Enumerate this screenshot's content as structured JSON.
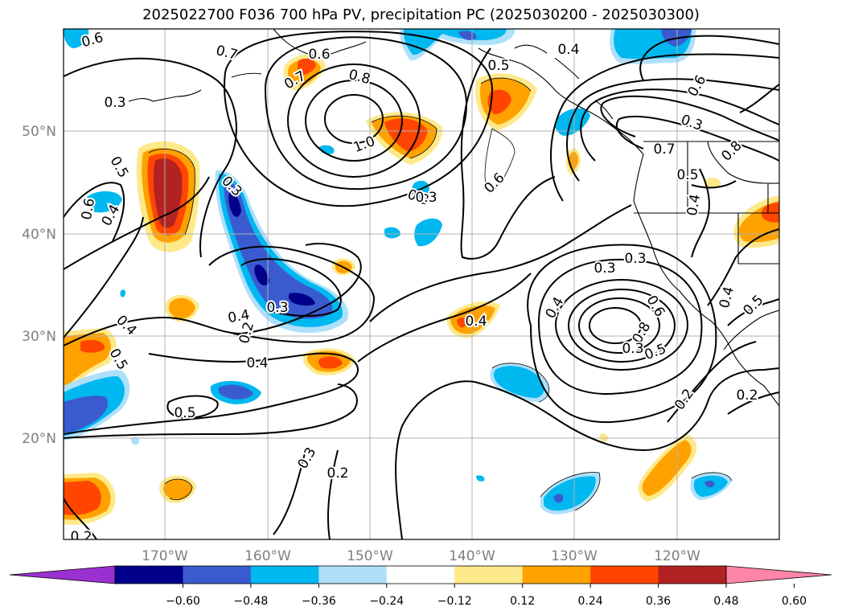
{
  "title": "2025022700 F036 700 hPa PV, precipitation PC (2025030200 - 2025030300)",
  "map": {
    "lat_labels": [
      "50°N",
      "40°N",
      "30°N",
      "20°N"
    ],
    "lon_labels": [
      "170°W",
      "160°W",
      "150°W",
      "140°W",
      "130°W",
      "120°W"
    ],
    "grid": true,
    "contour_labels": [
      {
        "text": "0.6"
      },
      {
        "text": "0.7"
      },
      {
        "text": "0.6"
      },
      {
        "text": "0.7"
      },
      {
        "text": "0.8"
      },
      {
        "text": "0.5"
      },
      {
        "text": "0.4"
      },
      {
        "text": "0.3"
      },
      {
        "text": "1.0"
      },
      {
        "text": "0.5"
      },
      {
        "text": "0.3"
      },
      {
        "text": "0.4"
      },
      {
        "text": "0.3"
      },
      {
        "text": "0.6"
      },
      {
        "text": "0.3"
      },
      {
        "text": "0.7"
      },
      {
        "text": "0.8"
      },
      {
        "text": "0.5"
      },
      {
        "text": "0.6"
      },
      {
        "text": "0.4"
      },
      {
        "text": "0.4"
      },
      {
        "text": "0.3"
      },
      {
        "text": "0.2"
      },
      {
        "text": "0.4"
      },
      {
        "text": "0.5"
      },
      {
        "text": "0.4"
      },
      {
        "text": "0.5"
      },
      {
        "text": "0.3"
      },
      {
        "text": "0.3"
      },
      {
        "text": "0.4"
      },
      {
        "text": "0.6"
      },
      {
        "text": "0.8"
      },
      {
        "text": "0.3"
      },
      {
        "text": "0.5"
      },
      {
        "text": "0.5"
      },
      {
        "text": "0.4"
      },
      {
        "text": "0.2"
      },
      {
        "text": "0.2"
      },
      {
        "text": "0.2"
      },
      {
        "text": "0.3"
      },
      {
        "text": "0.2"
      },
      {
        "text": "0.3"
      },
      {
        "text": "0.6"
      },
      {
        "text": "0.4"
      }
    ]
  },
  "colorbar": {
    "ticks": [
      "−0.60",
      "−0.48",
      "−0.36",
      "−0.24",
      "−0.12",
      "0.12",
      "0.24",
      "0.36",
      "0.48",
      "0.60"
    ],
    "colors": [
      "#9b30d0",
      "#00008b",
      "#3a5bd0",
      "#00b8f0",
      "#aee0fa",
      "#ffffff",
      "#fde98a",
      "#ffa200",
      "#ff4500",
      "#b22222",
      "#ff85a8"
    ]
  }
}
